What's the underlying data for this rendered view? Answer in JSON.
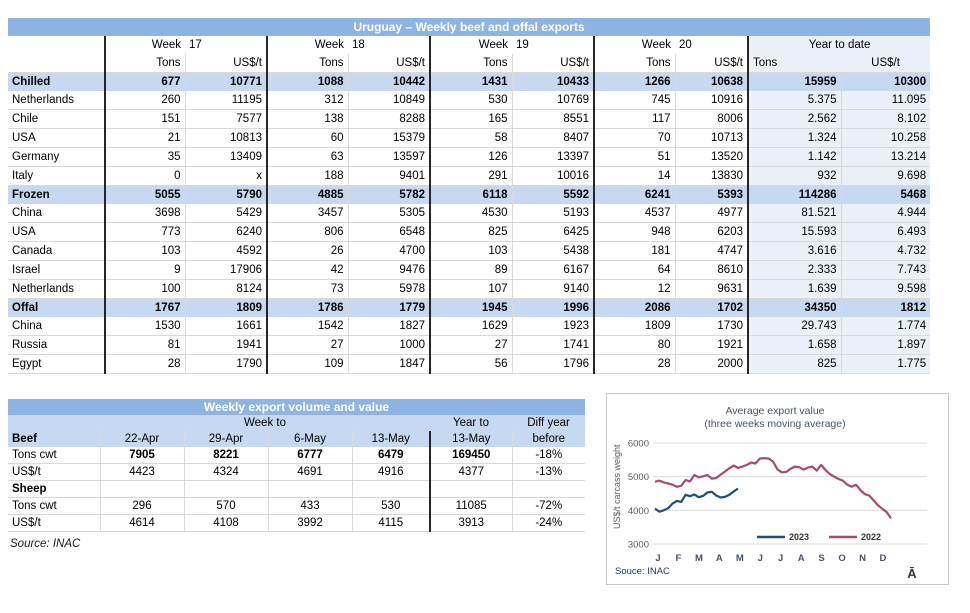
{
  "main_table": {
    "title": "Uruguay – Weekly beef and offal exports",
    "week_label": "Week",
    "week_numbers": [
      "17",
      "18",
      "19",
      "20"
    ],
    "ytd_label": "Year to date",
    "tons_label": "Tons",
    "usdt_label": "US$/t",
    "rows": [
      {
        "label": "Chilled",
        "type": "section",
        "values": [
          "677",
          "10771",
          "1088",
          "10442",
          "1431",
          "10433",
          "1266",
          "10638",
          "15959",
          "10300"
        ]
      },
      {
        "label": "Netherlands",
        "type": "data",
        "values": [
          "260",
          "11195",
          "312",
          "10849",
          "530",
          "10769",
          "745",
          "10916",
          "5.375",
          "11.095"
        ]
      },
      {
        "label": "Chile",
        "type": "data",
        "values": [
          "151",
          "7577",
          "138",
          "8288",
          "165",
          "8551",
          "117",
          "8006",
          "2.562",
          "8.102"
        ]
      },
      {
        "label": "USA",
        "type": "data",
        "values": [
          "21",
          "10813",
          "60",
          "15379",
          "58",
          "8407",
          "70",
          "10713",
          "1.324",
          "10.258"
        ]
      },
      {
        "label": "Germany",
        "type": "data",
        "values": [
          "35",
          "13409",
          "63",
          "13597",
          "126",
          "13397",
          "51",
          "13520",
          "1.142",
          "13.214"
        ]
      },
      {
        "label": "Italy",
        "type": "data",
        "values": [
          "0",
          "x",
          "188",
          "9401",
          "291",
          "10016",
          "14",
          "13830",
          "932",
          "9.698"
        ]
      },
      {
        "label": "Frozen",
        "type": "section",
        "values": [
          "5055",
          "5790",
          "4885",
          "5782",
          "6118",
          "5592",
          "6241",
          "5393",
          "114286",
          "5468"
        ]
      },
      {
        "label": "China",
        "type": "data",
        "values": [
          "3698",
          "5429",
          "3457",
          "5305",
          "4530",
          "5193",
          "4537",
          "4977",
          "81.521",
          "4.944"
        ]
      },
      {
        "label": "USA",
        "type": "data",
        "values": [
          "773",
          "6240",
          "806",
          "6548",
          "825",
          "6425",
          "948",
          "6203",
          "15.593",
          "6.493"
        ]
      },
      {
        "label": "Canada",
        "type": "data",
        "values": [
          "103",
          "4592",
          "26",
          "4700",
          "103",
          "5438",
          "181",
          "4747",
          "3.616",
          "4.732"
        ]
      },
      {
        "label": "Israel",
        "type": "data",
        "values": [
          "9",
          "17906",
          "42",
          "9476",
          "89",
          "6167",
          "64",
          "8610",
          "2.333",
          "7.743"
        ]
      },
      {
        "label": "Netherlands",
        "type": "data",
        "values": [
          "100",
          "8124",
          "73",
          "5978",
          "107",
          "9140",
          "12",
          "9631",
          "1.639",
          "9.598"
        ]
      },
      {
        "label": "Offal",
        "type": "section",
        "values": [
          "1767",
          "1809",
          "1786",
          "1779",
          "1945",
          "1996",
          "2086",
          "1702",
          "34350",
          "1812"
        ]
      },
      {
        "label": "China",
        "type": "data",
        "values": [
          "1530",
          "1661",
          "1542",
          "1827",
          "1629",
          "1923",
          "1809",
          "1730",
          "29.743",
          "1.774"
        ]
      },
      {
        "label": "Russia",
        "type": "data",
        "values": [
          "81",
          "1941",
          "27",
          "1000",
          "27",
          "1741",
          "80",
          "1921",
          "1.658",
          "1.897"
        ]
      },
      {
        "label": "Egypt",
        "type": "data",
        "values": [
          "28",
          "1790",
          "109",
          "1847",
          "56",
          "1796",
          "28",
          "2000",
          "825",
          "1.775"
        ]
      }
    ]
  },
  "volume_table": {
    "title": "Weekly export volume and value",
    "week_to_label": "Week to",
    "year_to_label": "Year to",
    "diff_label": "Diff year",
    "beef_label": "Beef",
    "date_headers": [
      "22-Apr",
      "29-Apr",
      "6-May",
      "13-May",
      "13-May",
      "before"
    ],
    "rows": [
      {
        "label": "Tons cwt",
        "style": "boldvals",
        "values": [
          "7905",
          "8221",
          "6777",
          "6479",
          "169450",
          "-18%"
        ]
      },
      {
        "label": "US$/t",
        "style": "plain",
        "values": [
          "4423",
          "4324",
          "4691",
          "4916",
          "4377",
          "-13%"
        ]
      },
      {
        "label": "Sheep",
        "style": "section",
        "values": [
          "",
          "",
          "",
          "",
          "",
          ""
        ]
      },
      {
        "label": "Tons cwt",
        "style": "plain",
        "values": [
          "296",
          "570",
          "433",
          "530",
          "11085",
          "-72%"
        ]
      },
      {
        "label": "US$/t",
        "style": "plain",
        "values": [
          "4614",
          "4108",
          "3992",
          "4115",
          "3913",
          "-24%"
        ]
      }
    ]
  },
  "source_note": "Source: INAC",
  "chart_data": {
    "type": "line",
    "title": "Average export  value",
    "subtitle": "(three weeks moving average)",
    "ylabel": "US$/t carcass weight",
    "ylim": [
      3000,
      6000
    ],
    "yticks": [
      6000,
      5000,
      4000,
      3000
    ],
    "x_months": [
      "J",
      "F",
      "M",
      "A",
      "M",
      "J",
      "J",
      "A",
      "S",
      "O",
      "N",
      "D"
    ],
    "grid": true,
    "legend_position": "bottom-inside",
    "source": "Souce: INAC",
    "series": [
      {
        "name": "2023",
        "color": "#1F4E79",
        "values": [
          4050,
          3960,
          4000,
          4060,
          4200,
          4280,
          4250,
          4460,
          4420,
          4470,
          4390,
          4430,
          4530,
          4550,
          4440,
          4380,
          4400,
          4460,
          4560,
          4650
        ]
      },
      {
        "name": "2022",
        "color": "#A8496F",
        "values": [
          4850,
          4880,
          4830,
          4800,
          4760,
          4700,
          4730,
          4900,
          4860,
          5050,
          4980,
          5010,
          5050,
          4940,
          4960,
          5060,
          5150,
          5250,
          5330,
          5260,
          5300,
          5350,
          5420,
          5390,
          5540,
          5550,
          5540,
          5450,
          5220,
          5130,
          5140,
          5230,
          5300,
          5280,
          5210,
          5270,
          5300,
          5180,
          5350,
          5200,
          5080,
          5000,
          4930,
          4880,
          4760,
          4700,
          4760,
          4600,
          4480,
          4440,
          4300,
          4150,
          4050,
          3950,
          3760
        ]
      }
    ]
  },
  "watermark": "Ā"
}
